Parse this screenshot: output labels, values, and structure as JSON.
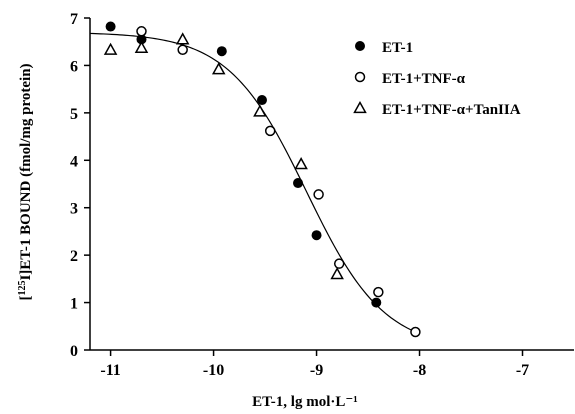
{
  "chart_data": {
    "type": "scatter",
    "xlabel": "ET-1, lg mol·L⁻¹",
    "ylabel_sup": "125",
    "ylabel_pre": "[",
    "ylabel_post": "I]ET-1  BOUND (fmol/mg protein)",
    "xlim": [
      -11.2,
      -6.5
    ],
    "ylim": [
      0,
      7
    ],
    "x_ticks": [
      -11,
      -10,
      -9,
      -8,
      -7
    ],
    "x_tick_labels": [
      "-11",
      "-10",
      "-9",
      "-8",
      "-7"
    ],
    "y_ticks": [
      0,
      1,
      2,
      3,
      4,
      5,
      6,
      7
    ],
    "y_tick_labels": [
      "0",
      "1",
      "2",
      "3",
      "4",
      "5",
      "6",
      "7"
    ],
    "legend_position": "top-right",
    "series": [
      {
        "name": "ET-1",
        "marker": "filled-circle",
        "points": [
          [
            -11.0,
            6.82
          ],
          [
            -10.7,
            6.55
          ],
          [
            -9.92,
            6.3
          ],
          [
            -9.53,
            5.27
          ],
          [
            -9.18,
            3.52
          ],
          [
            -9.0,
            2.42
          ],
          [
            -8.42,
            1.0
          ]
        ]
      },
      {
        "name": "ET-1+TNF-α",
        "marker": "open-circle",
        "points": [
          [
            -10.7,
            6.72
          ],
          [
            -10.3,
            6.33
          ],
          [
            -9.45,
            4.62
          ],
          [
            -8.98,
            3.28
          ],
          [
            -8.78,
            1.82
          ],
          [
            -8.4,
            1.22
          ],
          [
            -8.04,
            0.38
          ]
        ]
      },
      {
        "name": "ET-1+TNF-α+TanIIA",
        "marker": "open-triangle",
        "points": [
          [
            -11.0,
            6.33
          ],
          [
            -10.7,
            6.37
          ],
          [
            -10.3,
            6.55
          ],
          [
            -9.95,
            5.92
          ],
          [
            -9.55,
            5.03
          ],
          [
            -9.15,
            3.92
          ],
          [
            -8.8,
            1.6
          ]
        ]
      }
    ],
    "fit_curve": {
      "top": 6.7,
      "bottom": 0.0,
      "log_ic50": -9.1,
      "hill": 1.15,
      "x_range": [
        -11.2,
        -8.04
      ]
    }
  }
}
